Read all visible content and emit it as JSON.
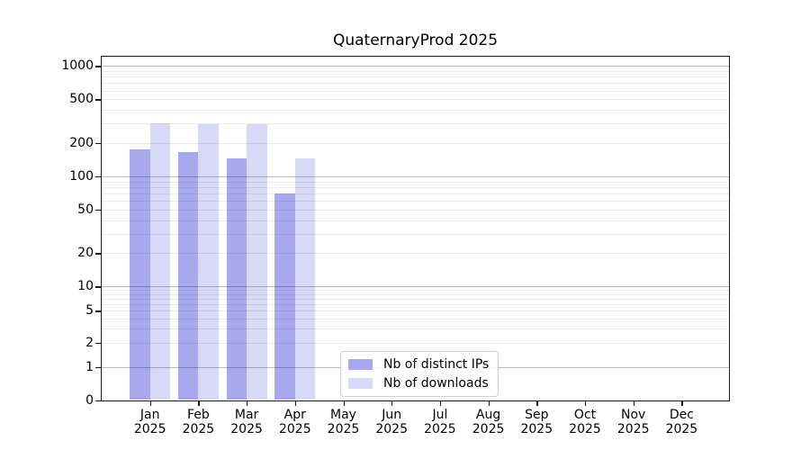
{
  "chart_data": {
    "type": "bar",
    "title": "QuaternaryProd 2025",
    "year_label": "2025",
    "categories": [
      "Jan",
      "Feb",
      "Mar",
      "Apr",
      "May",
      "Jun",
      "Jul",
      "Aug",
      "Sep",
      "Oct",
      "Nov",
      "Dec"
    ],
    "series": [
      {
        "name": "Nb of distinct IPs",
        "color": "#a8a8ef",
        "values": [
          175,
          165,
          145,
          70,
          0,
          0,
          0,
          0,
          0,
          0,
          0,
          0
        ]
      },
      {
        "name": "Nb of downloads",
        "color": "#d8d8f7",
        "values": [
          300,
          295,
          295,
          145,
          0,
          0,
          0,
          0,
          0,
          0,
          0,
          0
        ]
      }
    ],
    "yscale": "symlog",
    "yticks": [
      0,
      1,
      2,
      5,
      10,
      20,
      50,
      100,
      200,
      500,
      1000
    ],
    "ylim": [
      0,
      1200
    ],
    "grid": true,
    "grid_major_values": [
      1,
      10,
      100,
      1000
    ],
    "legend_position": "lower center-left inside plot",
    "legend_entries": [
      "Nb of distinct IPs",
      "Nb of downloads"
    ]
  }
}
